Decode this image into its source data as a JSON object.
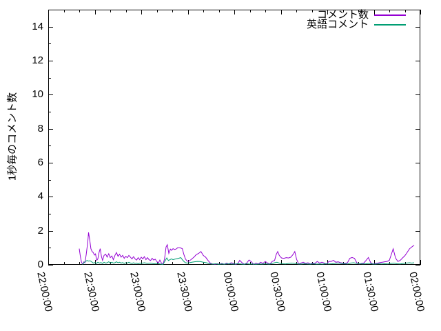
{
  "figure": {
    "background": "#ffffff",
    "axis_color": "#000000",
    "text_color": "#000000"
  },
  "chart_data": {
    "type": "line",
    "title": "",
    "xlabel": "",
    "ylabel": "1秒毎のコメント数",
    "x_unit": "minutes after 22:00:00",
    "xlim_minutes": [
      0,
      240
    ],
    "ylim": [
      0,
      15
    ],
    "grid": false,
    "legend_position": "top-right-inside",
    "ytick_labels": [
      "0",
      "2",
      "4",
      "6",
      "8",
      "10",
      "12",
      "14"
    ],
    "ytick_values": [
      0,
      2,
      4,
      6,
      8,
      10,
      12,
      14
    ],
    "ytick_minor_values": [
      1,
      3,
      5,
      7,
      9,
      11,
      13,
      15
    ],
    "xtick_labels": [
      "22:00:00",
      "22:30:00",
      "23:00:00",
      "23:30:00",
      "00:00:00",
      "00:30:00",
      "01:00:00",
      "01:30:00",
      "02:00:00"
    ],
    "xtick_minutes": [
      0,
      30,
      60,
      90,
      120,
      150,
      180,
      210,
      240
    ],
    "xtick_minor_interval_minutes": 10,
    "series": [
      {
        "name": "コメント数",
        "color": "#9400d3",
        "points": [
          [
            20,
            0.95
          ],
          [
            20.7,
            0.5
          ],
          [
            21.5,
            0.12
          ],
          [
            22.3,
            0.05
          ],
          [
            23,
            0.18
          ],
          [
            23.7,
            0.12
          ],
          [
            24.5,
            0.6
          ],
          [
            25.5,
            1.35
          ],
          [
            26,
            1.9
          ],
          [
            26.7,
            1.5
          ],
          [
            27.5,
            0.95
          ],
          [
            28.3,
            0.78
          ],
          [
            29,
            0.72
          ],
          [
            29.8,
            0.57
          ],
          [
            30.5,
            0.64
          ],
          [
            31.3,
            0.26
          ],
          [
            32,
            0.35
          ],
          [
            32.8,
            0.73
          ],
          [
            33.5,
            0.95
          ],
          [
            34.3,
            0.5
          ],
          [
            35,
            0.26
          ],
          [
            36,
            0.55
          ],
          [
            37,
            0.63
          ],
          [
            38,
            0.45
          ],
          [
            39,
            0.65
          ],
          [
            40,
            0.42
          ],
          [
            41,
            0.52
          ],
          [
            42,
            0.3
          ],
          [
            43,
            0.55
          ],
          [
            44,
            0.72
          ],
          [
            45,
            0.5
          ],
          [
            46,
            0.62
          ],
          [
            47,
            0.45
          ],
          [
            48,
            0.55
          ],
          [
            49,
            0.38
          ],
          [
            50,
            0.5
          ],
          [
            51,
            0.42
          ],
          [
            52,
            0.55
          ],
          [
            53,
            0.45
          ],
          [
            54,
            0.35
          ],
          [
            55,
            0.48
          ],
          [
            56,
            0.35
          ],
          [
            57,
            0.28
          ],
          [
            58,
            0.42
          ],
          [
            59,
            0.3
          ],
          [
            60,
            0.45
          ],
          [
            61,
            0.35
          ],
          [
            62,
            0.48
          ],
          [
            63,
            0.3
          ],
          [
            64,
            0.42
          ],
          [
            65,
            0.3
          ],
          [
            66,
            0.25
          ],
          [
            67,
            0.38
          ],
          [
            68,
            0.28
          ],
          [
            69,
            0.33
          ],
          [
            70,
            0.2
          ],
          [
            71,
            0.1
          ],
          [
            72,
            0.28
          ],
          [
            73,
            0.1
          ],
          [
            74,
            0.02
          ],
          [
            75,
            0.35
          ],
          [
            76,
            1.05
          ],
          [
            76.8,
            1.18
          ],
          [
            77.8,
            0.67
          ],
          [
            78.8,
            0.92
          ],
          [
            79.5,
            0.85
          ],
          [
            80.5,
            0.95
          ],
          [
            81.5,
            0.9
          ],
          [
            82.5,
            0.93
          ],
          [
            83.5,
            1.0
          ],
          [
            85,
            1.0
          ],
          [
            86.5,
            0.95
          ],
          [
            87.5,
            0.6
          ],
          [
            88.5,
            0.35
          ],
          [
            89.5,
            0.22
          ],
          [
            90.5,
            0.2
          ],
          [
            92,
            0.3
          ],
          [
            94,
            0.45
          ],
          [
            95.5,
            0.6
          ],
          [
            97,
            0.67
          ],
          [
            98.5,
            0.78
          ],
          [
            100,
            0.55
          ],
          [
            101.5,
            0.45
          ],
          [
            103,
            0.26
          ],
          [
            104.5,
            0.1
          ],
          [
            106,
            0.05
          ],
          [
            107.5,
            0.03
          ],
          [
            109,
            0.06
          ],
          [
            110.5,
            0.04
          ],
          [
            112,
            0.08
          ],
          [
            113.5,
            0.03
          ],
          [
            115,
            0.1
          ],
          [
            116.5,
            0.05
          ],
          [
            118,
            0.12
          ],
          [
            119.5,
            0.08
          ],
          [
            121,
            0.02
          ],
          [
            122.5,
            0.1
          ],
          [
            123.5,
            0.26
          ],
          [
            125,
            0.12
          ],
          [
            126.5,
            0.03
          ],
          [
            128,
            0.1
          ],
          [
            129.5,
            0.28
          ],
          [
            131,
            0.18
          ],
          [
            132.5,
            0.02
          ],
          [
            134,
            0.1
          ],
          [
            135.5,
            0.05
          ],
          [
            137,
            0.15
          ],
          [
            138.5,
            0.08
          ],
          [
            140,
            0.2
          ],
          [
            141.5,
            0.1
          ],
          [
            143,
            0.05
          ],
          [
            144.5,
            0.2
          ],
          [
            146,
            0.26
          ],
          [
            147,
            0.6
          ],
          [
            148,
            0.78
          ],
          [
            149,
            0.55
          ],
          [
            150.5,
            0.4
          ],
          [
            152,
            0.38
          ],
          [
            153.5,
            0.42
          ],
          [
            155,
            0.4
          ],
          [
            156.5,
            0.45
          ],
          [
            158,
            0.62
          ],
          [
            159,
            0.78
          ],
          [
            160.2,
            0.33
          ],
          [
            161.5,
            0.05
          ],
          [
            163,
            0.1
          ],
          [
            164.5,
            0.15
          ],
          [
            166,
            0.08
          ],
          [
            167.5,
            0.12
          ],
          [
            169,
            0.05
          ],
          [
            170.5,
            0.1
          ],
          [
            172,
            0.08
          ],
          [
            173.5,
            0.2
          ],
          [
            175,
            0.1
          ],
          [
            176.5,
            0.15
          ],
          [
            178,
            0.1
          ],
          [
            179.5,
            0.05
          ],
          [
            181,
            0.2
          ],
          [
            182.5,
            0.2
          ],
          [
            184,
            0.26
          ],
          [
            185.5,
            0.15
          ],
          [
            187,
            0.18
          ],
          [
            188.5,
            0.12
          ],
          [
            190,
            0.1
          ],
          [
            191.5,
            0.08
          ],
          [
            193,
            0.12
          ],
          [
            194.5,
            0.38
          ],
          [
            196,
            0.43
          ],
          [
            197.5,
            0.38
          ],
          [
            199,
            0.12
          ],
          [
            200.5,
            0.05
          ],
          [
            202,
            0.08
          ],
          [
            203.5,
            0.1
          ],
          [
            205,
            0.26
          ],
          [
            206.5,
            0.43
          ],
          [
            208,
            0.12
          ],
          [
            209.5,
            0.05
          ],
          [
            211,
            0.08
          ],
          [
            212.5,
            0.1
          ],
          [
            214,
            0.13
          ],
          [
            215.5,
            0.15
          ],
          [
            217,
            0.18
          ],
          [
            218.5,
            0.2
          ],
          [
            220,
            0.26
          ],
          [
            221.5,
            0.67
          ],
          [
            222.5,
            0.94
          ],
          [
            224,
            0.4
          ],
          [
            225.5,
            0.2
          ],
          [
            227,
            0.26
          ],
          [
            228.5,
            0.4
          ],
          [
            230,
            0.53
          ],
          [
            231.5,
            0.73
          ],
          [
            233,
            0.94
          ],
          [
            234.5,
            1.05
          ],
          [
            236,
            1.15
          ]
        ]
      },
      {
        "name": "英語コメント",
        "color": "#009e73",
        "points": [
          [
            22,
            0.02
          ],
          [
            23,
            0.12
          ],
          [
            24,
            0.2
          ],
          [
            25,
            0.25
          ],
          [
            26,
            0.22
          ],
          [
            27,
            0.24
          ],
          [
            28,
            0.18
          ],
          [
            29,
            0.1
          ],
          [
            30,
            0.13
          ],
          [
            31,
            0.08
          ],
          [
            32,
            0.15
          ],
          [
            33,
            0.1
          ],
          [
            34,
            0.13
          ],
          [
            35,
            0.08
          ],
          [
            36,
            0.15
          ],
          [
            37,
            0.1
          ],
          [
            38,
            0.12
          ],
          [
            39,
            0.18
          ],
          [
            40,
            0.1
          ],
          [
            41,
            0.15
          ],
          [
            42,
            0.1
          ],
          [
            43,
            0.12
          ],
          [
            44,
            0.18
          ],
          [
            45,
            0.12
          ],
          [
            46,
            0.15
          ],
          [
            47,
            0.1
          ],
          [
            48,
            0.13
          ],
          [
            49,
            0.08
          ],
          [
            50,
            0.12
          ],
          [
            51,
            0.1
          ],
          [
            52,
            0.15
          ],
          [
            53,
            0.1
          ],
          [
            54,
            0.08
          ],
          [
            55,
            0.12
          ],
          [
            56,
            0.08
          ],
          [
            57,
            0.1
          ],
          [
            58,
            0.06
          ],
          [
            59,
            0.1
          ],
          [
            60,
            0.08
          ],
          [
            62,
            0.12
          ],
          [
            64,
            0.08
          ],
          [
            66,
            0.1
          ],
          [
            68,
            0.06
          ],
          [
            70,
            0.08
          ],
          [
            72,
            0.05
          ],
          [
            74,
            0.02
          ],
          [
            75.5,
            0.25
          ],
          [
            76.5,
            0.4
          ],
          [
            77.5,
            0.25
          ],
          [
            78.5,
            0.3
          ],
          [
            79.5,
            0.35
          ],
          [
            80.5,
            0.3
          ],
          [
            81.5,
            0.33
          ],
          [
            82.5,
            0.35
          ],
          [
            84,
            0.38
          ],
          [
            85.5,
            0.42
          ],
          [
            86.5,
            0.3
          ],
          [
            87.5,
            0.2
          ],
          [
            88.5,
            0.12
          ],
          [
            90,
            0.1
          ],
          [
            92,
            0.14
          ],
          [
            94,
            0.17
          ],
          [
            96,
            0.2
          ],
          [
            98,
            0.19
          ],
          [
            100,
            0.15
          ],
          [
            102,
            0.12
          ],
          [
            104,
            0.06
          ],
          [
            106,
            0.04
          ],
          [
            108,
            0.06
          ],
          [
            110,
            0.03
          ],
          [
            112,
            0.05
          ],
          [
            114,
            0.04
          ],
          [
            116,
            0.06
          ],
          [
            118,
            0.05
          ],
          [
            120,
            0.04
          ],
          [
            122,
            0.06
          ],
          [
            124,
            0.05
          ],
          [
            126,
            0.03
          ],
          [
            128,
            0.06
          ],
          [
            130,
            0.04
          ],
          [
            132,
            0.05
          ],
          [
            134,
            0.03
          ],
          [
            136,
            0.05
          ],
          [
            138,
            0.04
          ],
          [
            140,
            0.06
          ],
          [
            142,
            0.04
          ],
          [
            144,
            0.06
          ],
          [
            146,
            0.12
          ],
          [
            147.5,
            0.15
          ],
          [
            149,
            0.1
          ],
          [
            151,
            0.06
          ],
          [
            153,
            0.05
          ],
          [
            155,
            0.08
          ],
          [
            157,
            0.1
          ],
          [
            159,
            0.08
          ],
          [
            161,
            0.05
          ],
          [
            163,
            0.04
          ],
          [
            165,
            0.06
          ],
          [
            167,
            0.05
          ],
          [
            169,
            0.04
          ],
          [
            171,
            0.06
          ],
          [
            173,
            0.04
          ],
          [
            175,
            0.05
          ],
          [
            177,
            0.04
          ],
          [
            179,
            0.06
          ],
          [
            181,
            0.05
          ],
          [
            183,
            0.06
          ],
          [
            185,
            0.08
          ],
          [
            187,
            0.1
          ],
          [
            189,
            0.08
          ],
          [
            191,
            0.06
          ],
          [
            193,
            0.05
          ],
          [
            195,
            0.1
          ],
          [
            197,
            0.12
          ],
          [
            199,
            0.08
          ],
          [
            201,
            0.06
          ],
          [
            203,
            0.05
          ],
          [
            205,
            0.06
          ],
          [
            207,
            0.08
          ],
          [
            209,
            0.05
          ],
          [
            211,
            0.04
          ],
          [
            213,
            0.06
          ],
          [
            215,
            0.05
          ],
          [
            217,
            0.06
          ],
          [
            219,
            0.05
          ],
          [
            221,
            0.08
          ],
          [
            223,
            0.1
          ],
          [
            225,
            0.06
          ],
          [
            227,
            0.05
          ],
          [
            229,
            0.08
          ],
          [
            231,
            0.1
          ],
          [
            233,
            0.12
          ],
          [
            234.5,
            0.1
          ],
          [
            236,
            0.12
          ]
        ]
      }
    ]
  }
}
